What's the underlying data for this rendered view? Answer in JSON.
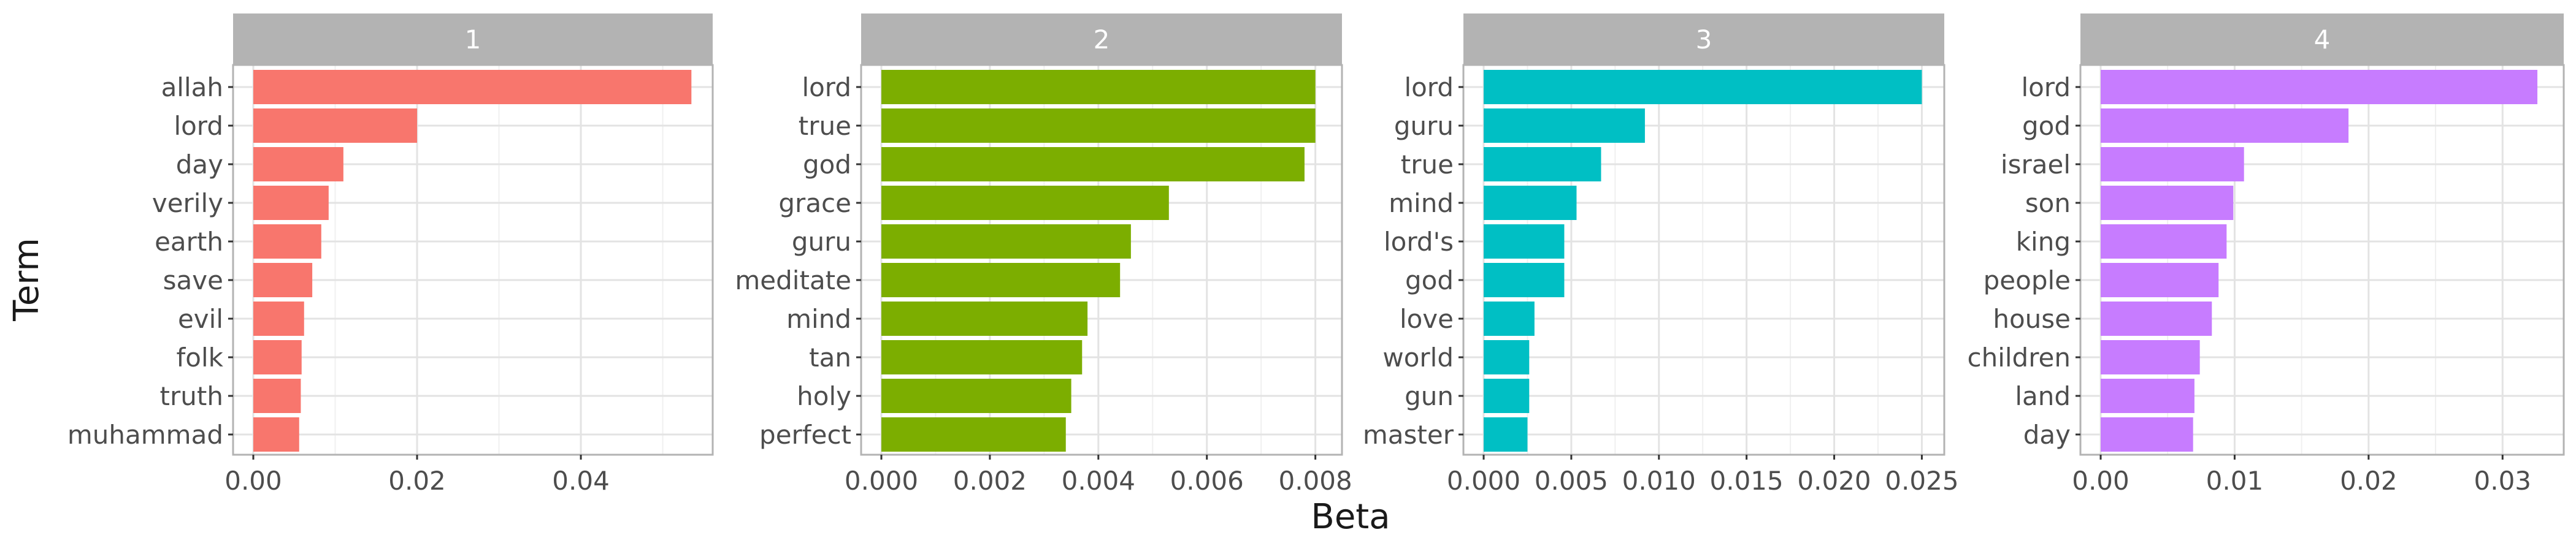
{
  "chart_data": {
    "type": "bar",
    "orientation": "horizontal",
    "xlabel": "Beta",
    "ylabel": "Term",
    "grid": true,
    "legend": "none",
    "facets": [
      {
        "strip": "1",
        "color": "#F8766D",
        "xlim": [
          0,
          0.0555
        ],
        "xticks": [
          0,
          0.02,
          0.04
        ],
        "xtick_labels": [
          "0.00",
          "0.02",
          "0.04"
        ],
        "terms": [
          "allah",
          "lord",
          "day",
          "verily",
          "earth",
          "save",
          "evil",
          "folk",
          "truth",
          "muhammad"
        ],
        "values": [
          0.0535,
          0.02,
          0.011,
          0.0092,
          0.0083,
          0.0072,
          0.0062,
          0.0059,
          0.0058,
          0.0056
        ]
      },
      {
        "strip": "2",
        "color": "#7CAE00",
        "xlim": [
          0,
          0.0084
        ],
        "xticks": [
          0,
          0.002,
          0.004,
          0.006,
          0.008
        ],
        "xtick_labels": [
          "0.000",
          "0.002",
          "0.004",
          "0.006",
          "0.008"
        ],
        "terms": [
          "lord",
          "true",
          "god",
          "grace",
          "guru",
          "meditate",
          "mind",
          "tan",
          "holy",
          "perfect"
        ],
        "values": [
          0.008,
          0.008,
          0.0078,
          0.0053,
          0.0046,
          0.0044,
          0.0038,
          0.0037,
          0.0035,
          0.0034
        ]
      },
      {
        "strip": "3",
        "color": "#00BFC4",
        "xlim": [
          0,
          0.026
        ],
        "xticks": [
          0,
          0.005,
          0.01,
          0.015,
          0.02,
          0.025
        ],
        "xtick_labels": [
          "0.000",
          "0.005",
          "0.010",
          "0.015",
          "0.020",
          "0.025"
        ],
        "terms": [
          "lord",
          "guru",
          "true",
          "mind",
          "lord's",
          "god",
          "love",
          "world",
          "gun",
          "master"
        ],
        "values": [
          0.025,
          0.0092,
          0.0067,
          0.0053,
          0.0046,
          0.0046,
          0.0029,
          0.0026,
          0.0026,
          0.0025
        ]
      },
      {
        "strip": "4",
        "color": "#C77CFF",
        "xlim": [
          0,
          0.0342
        ],
        "xticks": [
          0,
          0.01,
          0.02,
          0.03
        ],
        "xtick_labels": [
          "0.00",
          "0.01",
          "0.02",
          "0.03"
        ],
        "terms": [
          "lord",
          "god",
          "israel",
          "son",
          "king",
          "people",
          "house",
          "children",
          "land",
          "day"
        ],
        "values": [
          0.0326,
          0.0185,
          0.0107,
          0.0099,
          0.0094,
          0.0088,
          0.0083,
          0.0074,
          0.007,
          0.0069
        ]
      }
    ]
  }
}
